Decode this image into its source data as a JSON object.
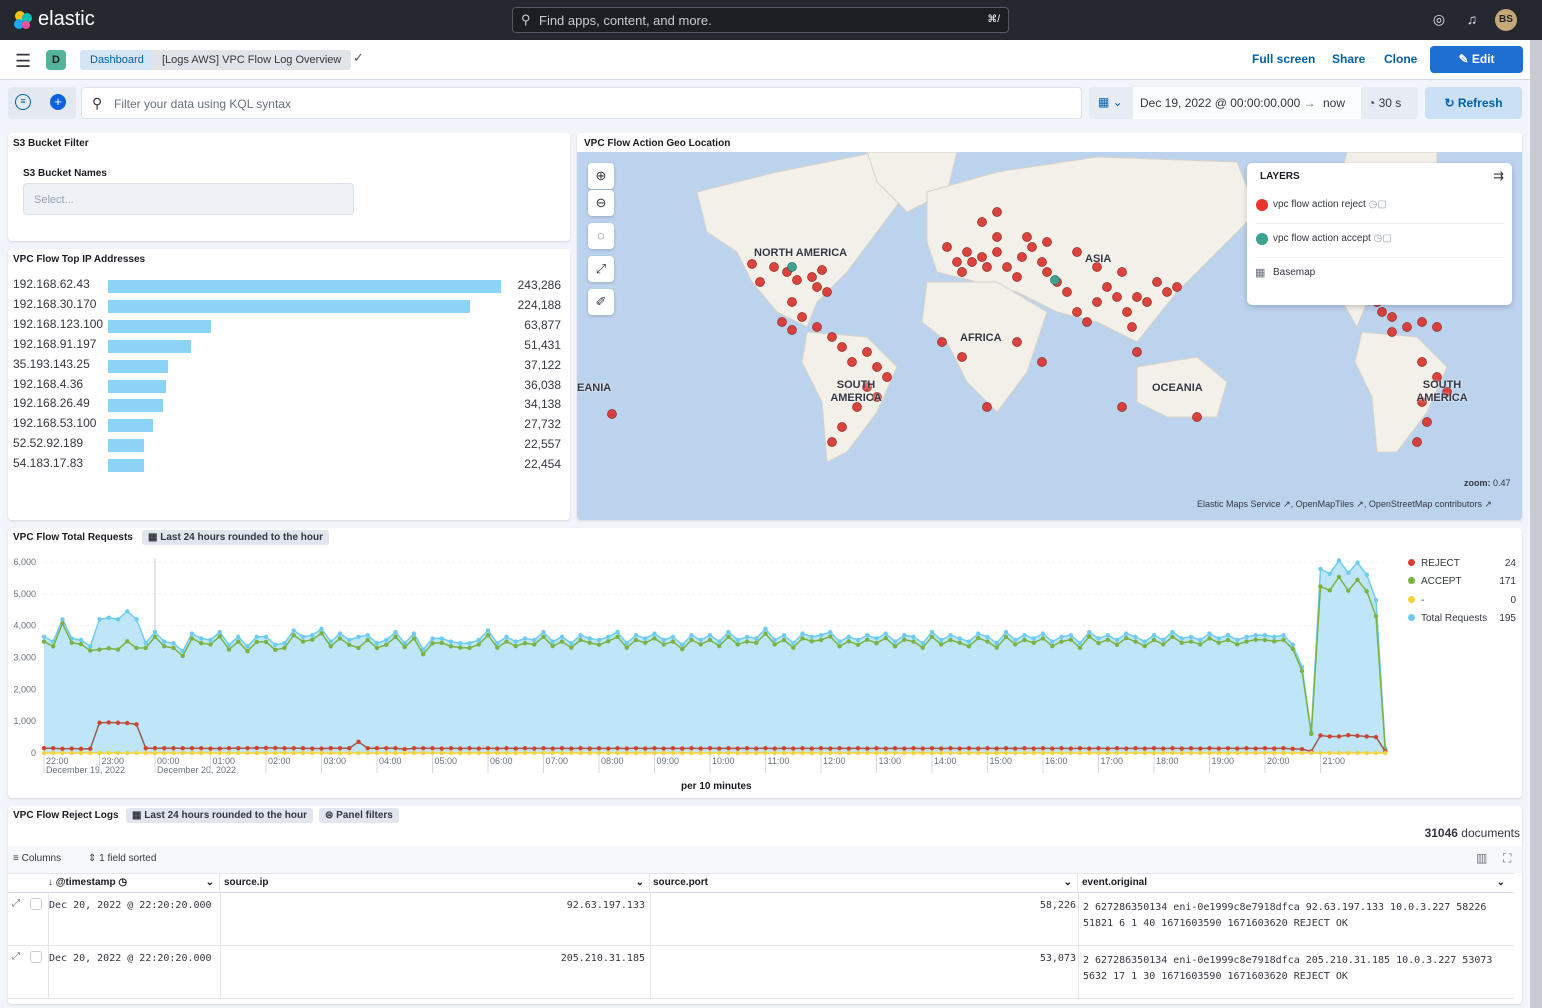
{
  "topbar": {
    "brand": "elastic",
    "search_placeholder": "Find apps, content, and more.",
    "search_shortcut": "⌘/",
    "avatar": "BS",
    "icons": [
      "help-icon",
      "news-icon"
    ]
  },
  "nav": {
    "space": "D",
    "breadcrumbs": [
      "Dashboard",
      "[Logs AWS] VPC Flow Log Overview"
    ],
    "links": [
      "Full screen",
      "Share",
      "Clone"
    ],
    "edit": "Edit"
  },
  "query": {
    "placeholder": "Filter your data using KQL syntax",
    "start": "Dec 19, 2022 @ 00:00:00.000",
    "arrow": "→",
    "end": "now",
    "interval": "30 s",
    "refresh": "Refresh"
  },
  "s3": {
    "title": "S3 Bucket Filter",
    "label": "S3 Bucket Names",
    "placeholder": "Select..."
  },
  "topip": {
    "title": "VPC Flow Top IP Addresses",
    "rows": [
      {
        "ip": "192.168.62.43",
        "value": 243286,
        "label": "243,286"
      },
      {
        "ip": "192.168.30.170",
        "value": 224188,
        "label": "224,188"
      },
      {
        "ip": "192.168.123.100",
        "value": 63877,
        "label": "63,877"
      },
      {
        "ip": "192.168.91.197",
        "value": 51431,
        "label": "51,431"
      },
      {
        "ip": "35.193.143.25",
        "value": 37122,
        "label": "37,122"
      },
      {
        "ip": "192.168.4.36",
        "value": 36038,
        "label": "36,038"
      },
      {
        "ip": "192.168.26.49",
        "value": 34138,
        "label": "34,138"
      },
      {
        "ip": "192.168.53.100",
        "value": 27732,
        "label": "27,732"
      },
      {
        "ip": "52.52.92.189",
        "value": 22557,
        "label": "22,557"
      },
      {
        "ip": "54.183.17.83",
        "value": 22454,
        "label": "22,454"
      }
    ]
  },
  "map": {
    "title": "VPC Flow Action Geo Location",
    "layers_title": "LAYERS",
    "layers": [
      {
        "name": "vpc flow action reject",
        "color": "#e7352b"
      },
      {
        "name": "vpc flow action accept",
        "color": "#3fa190"
      },
      {
        "name": "Basemap"
      }
    ],
    "labels": [
      "NORTH AMERICA",
      "ASIA",
      "AFRICA",
      "SOUTH AMERICA",
      "OCEANIA",
      "EANIA",
      "SOUTH AMERICA"
    ],
    "zoom_label": "zoom:",
    "zoom": "0.47",
    "attribution": [
      "Elastic Maps Service",
      "OpenMapTiles",
      "OpenStreetMap contributors"
    ]
  },
  "requests": {
    "title": "VPC Flow Total Requests",
    "badge": "Last 24 hours rounded to the hour",
    "xlabel": "per 10 minutes"
  },
  "chart_data": {
    "type": "area",
    "title": "VPC Flow Total Requests",
    "xlabel": "per 10 minutes",
    "ylabel": "",
    "x_start": "2022-12-19 22:00",
    "x_interval_minutes": 10,
    "ylim": [
      0,
      6000
    ],
    "yticks": [
      "0",
      "1,000",
      "2,000",
      "3,000",
      "4,000",
      "5,000",
      "6,000"
    ],
    "xticks": [
      {
        "t": "22:00",
        "d": "December 19, 2022"
      },
      {
        "t": "23:00"
      },
      {
        "t": "00:00",
        "d": "December 20, 2022"
      },
      {
        "t": "01:00"
      },
      {
        "t": "02:00"
      },
      {
        "t": "03:00"
      },
      {
        "t": "04:00"
      },
      {
        "t": "05:00"
      },
      {
        "t": "06:00"
      },
      {
        "t": "07:00"
      },
      {
        "t": "08:00"
      },
      {
        "t": "09:00"
      },
      {
        "t": "10:00"
      },
      {
        "t": "11:00"
      },
      {
        "t": "12:00"
      },
      {
        "t": "13:00"
      },
      {
        "t": "14:00"
      },
      {
        "t": "15:00"
      },
      {
        "t": "16:00"
      },
      {
        "t": "17:00"
      },
      {
        "t": "18:00"
      },
      {
        "t": "19:00"
      },
      {
        "t": "20:00"
      },
      {
        "t": "21:00"
      }
    ],
    "legend_position": "right",
    "series": [
      {
        "name": "Total Requests",
        "color": "#6dccf1",
        "legend_value": "195",
        "values": [
          3650,
          3500,
          4200,
          3600,
          3550,
          3350,
          4200,
          4250,
          4200,
          4450,
          4200,
          3450,
          3800,
          3500,
          3450,
          3200,
          3750,
          3600,
          3550,
          3800,
          3400,
          3650,
          3350,
          3650,
          3650,
          3400,
          3450,
          3850,
          3650,
          3700,
          3900,
          3500,
          3750,
          3550,
          3650,
          3700,
          3450,
          3550,
          3800,
          3450,
          3750,
          3250,
          3600,
          3600,
          3500,
          3450,
          3450,
          3550,
          3850,
          3450,
          3650,
          3500,
          3600,
          3550,
          3800,
          3500,
          3650,
          3450,
          3700,
          3600,
          3550,
          3650,
          3800,
          3450,
          3700,
          3600,
          3750,
          3550,
          3650,
          3400,
          3700,
          3550,
          3700,
          3500,
          3800,
          3550,
          3650,
          3600,
          3900,
          3550,
          3700,
          3450,
          3750,
          3650,
          3700,
          3800,
          3500,
          3650,
          3550,
          3700,
          3600,
          3750,
          3500,
          3700,
          3650,
          3450,
          3800,
          3550,
          3700,
          3600,
          3500,
          3750,
          3650,
          3450,
          3800,
          3550,
          3700,
          3600,
          3750,
          3500,
          3650,
          3700,
          3450,
          3800,
          3600,
          3700,
          3550,
          3750,
          3650,
          3500,
          3700,
          3550,
          3800,
          3600,
          3650,
          3550,
          3750,
          3600,
          3700,
          3550,
          3650,
          3700,
          3700,
          3650,
          3700,
          3400,
          2700,
          650,
          5780,
          5630,
          6050,
          5660,
          5980,
          5600,
          4800,
          150
        ]
      },
      {
        "name": "ACCEPT",
        "color": "#7ab342",
        "legend_value": "171",
        "values": [
          3500,
          3350,
          4070,
          3460,
          3420,
          3220,
          3250,
          3290,
          3250,
          3510,
          3300,
          3300,
          3650,
          3350,
          3300,
          3050,
          3600,
          3450,
          3410,
          3660,
          3250,
          3500,
          3200,
          3490,
          3490,
          3240,
          3300,
          3700,
          3500,
          3560,
          3760,
          3350,
          3600,
          3400,
          3300,
          3550,
          3300,
          3400,
          3650,
          3330,
          3600,
          3100,
          3450,
          3460,
          3350,
          3310,
          3300,
          3410,
          3700,
          3310,
          3500,
          3360,
          3450,
          3410,
          3650,
          3360,
          3500,
          3310,
          3550,
          3460,
          3400,
          3510,
          3650,
          3310,
          3550,
          3460,
          3600,
          3410,
          3500,
          3260,
          3550,
          3410,
          3550,
          3360,
          3650,
          3410,
          3500,
          3460,
          3750,
          3410,
          3550,
          3310,
          3600,
          3510,
          3550,
          3660,
          3350,
          3510,
          3400,
          3560,
          3450,
          3610,
          3350,
          3560,
          3500,
          3310,
          3650,
          3410,
          3550,
          3460,
          3350,
          3610,
          3500,
          3310,
          3650,
          3410,
          3550,
          3460,
          3600,
          3360,
          3500,
          3560,
          3300,
          3660,
          3450,
          3560,
          3400,
          3610,
          3500,
          3360,
          3550,
          3410,
          3650,
          3460,
          3500,
          3410,
          3600,
          3460,
          3550,
          3410,
          3500,
          3560,
          3550,
          3510,
          3550,
          3270,
          2580,
          600,
          5230,
          5110,
          5530,
          5100,
          5440,
          5080,
          4300,
          100
        ]
      },
      {
        "name": "REJECT",
        "color": "#d6402f",
        "legend_value": "24",
        "values": [
          150,
          150,
          130,
          140,
          130,
          130,
          950,
          960,
          950,
          940,
          900,
          150,
          150,
          150,
          150,
          150,
          150,
          150,
          140,
          140,
          150,
          150,
          150,
          160,
          160,
          160,
          150,
          150,
          150,
          140,
          140,
          150,
          150,
          150,
          350,
          150,
          150,
          150,
          150,
          120,
          150,
          150,
          150,
          140,
          150,
          140,
          150,
          140,
          150,
          140,
          150,
          140,
          150,
          140,
          150,
          140,
          150,
          140,
          150,
          140,
          150,
          140,
          150,
          140,
          150,
          140,
          150,
          140,
          150,
          140,
          150,
          140,
          150,
          140,
          150,
          140,
          150,
          140,
          150,
          140,
          150,
          140,
          150,
          140,
          150,
          140,
          150,
          140,
          150,
          140,
          150,
          140,
          150,
          140,
          150,
          140,
          150,
          140,
          150,
          140,
          150,
          140,
          150,
          140,
          150,
          140,
          150,
          140,
          150,
          140,
          150,
          140,
          150,
          140,
          150,
          140,
          150,
          140,
          150,
          140,
          150,
          140,
          150,
          140,
          150,
          140,
          150,
          140,
          150,
          140,
          150,
          140,
          150,
          140,
          150,
          130,
          120,
          50,
          550,
          520,
          520,
          560,
          540,
          520,
          500,
          50
        ]
      },
      {
        "name": "-",
        "color": "#f5d33b",
        "legend_value": "0",
        "values": "all 0"
      }
    ],
    "legend_order": [
      "REJECT",
      "ACCEPT",
      "-",
      "Total Requests"
    ]
  },
  "logs": {
    "title": "VPC Flow Reject Logs",
    "badge": "Last 24 hours rounded to the hour",
    "panel_filters": "Panel filters",
    "count": "31046",
    "count_suffix": "documents",
    "columns_btn": "Columns",
    "sorted": "1 field sorted",
    "headers": [
      "@timestamp",
      "source.ip",
      "source.port",
      "event.original"
    ],
    "rows": [
      {
        "ts": "Dec 20, 2022 @ 22:20:20.000",
        "ip": "92.63.197.133",
        "port": "58,226",
        "orig": "2 627286350134 eni-0e1999c8e7918dfca 92.63.197.133 10.0.3.227 58226 51821 6 1 40 1671603590 1671603620 REJECT OK"
      },
      {
        "ts": "Dec 20, 2022 @ 22:20:20.000",
        "ip": "205.210.31.185",
        "port": "53,073",
        "orig": "2 627286350134 eni-0e1999c8e7918dfca 205.210.31.185 10.0.3.227 53073 5632 17 1 30 1671603590 1671603620 REJECT OK"
      }
    ]
  }
}
